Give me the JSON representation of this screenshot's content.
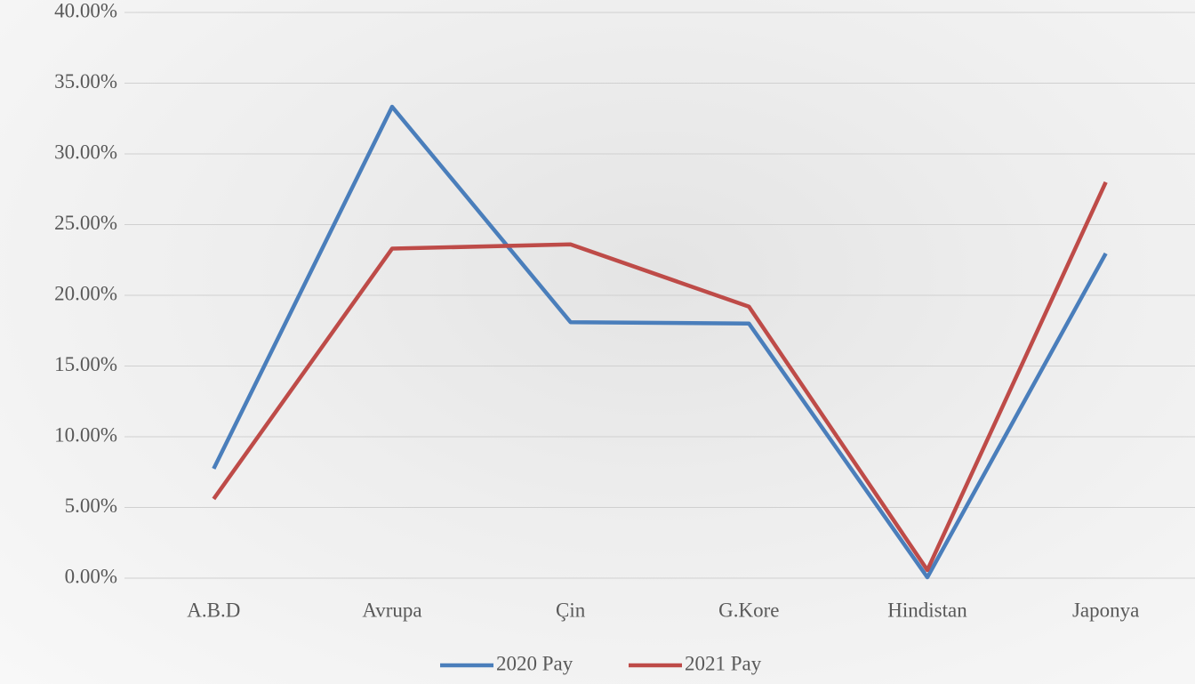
{
  "chart_data": {
    "type": "line",
    "categories": [
      "A.B.D",
      "Avrupa",
      "Çin",
      "G.Kore",
      "Hindistan",
      "Japonya"
    ],
    "series": [
      {
        "name": "2020 Pay",
        "color": "#4a7ebb",
        "values": [
          7.74,
          33.33,
          18.1,
          18.0,
          0.06,
          22.96
        ]
      },
      {
        "name": "2021 Pay",
        "color": "#be4b48",
        "values": [
          5.6,
          23.3,
          23.6,
          19.2,
          0.57,
          28.0
        ]
      }
    ],
    "ylim": [
      0,
      40
    ],
    "yticks": [
      {
        "value": 0,
        "label": "0.00%"
      },
      {
        "value": 5,
        "label": "5.00%"
      },
      {
        "value": 10,
        "label": "10.00%"
      },
      {
        "value": 15,
        "label": "15.00%"
      },
      {
        "value": 20,
        "label": "20.00%"
      },
      {
        "value": 25,
        "label": "25.00%"
      },
      {
        "value": 30,
        "label": "30.00%"
      },
      {
        "value": 35,
        "label": "35.00%"
      },
      {
        "value": 40,
        "label": "40.00%"
      }
    ],
    "grid": true,
    "legend": "bottom"
  }
}
